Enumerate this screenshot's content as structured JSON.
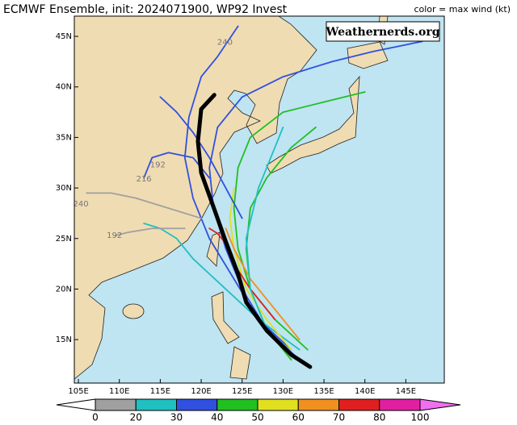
{
  "title": "ECMWF Ensemble, init: 2024071900, WP92 Invest",
  "legend_note": "color = max wind (kt)",
  "watermark": "Weathernerds.org",
  "map": {
    "lonlim": [
      104.5,
      149.7
    ],
    "latlim": [
      10.7,
      47
    ],
    "lonticks": [
      {
        "value": 105,
        "label": "105E"
      },
      {
        "value": 110,
        "label": "110E"
      },
      {
        "value": 115,
        "label": "115E"
      },
      {
        "value": 120,
        "label": "120E"
      },
      {
        "value": 125,
        "label": "125E"
      },
      {
        "value": 130,
        "label": "130E"
      },
      {
        "value": 135,
        "label": "135E"
      },
      {
        "value": 140,
        "label": "140E"
      },
      {
        "value": 145,
        "label": "145E"
      }
    ],
    "latticks": [
      {
        "value": 15,
        "label": "15N"
      },
      {
        "value": 20,
        "label": "20N"
      },
      {
        "value": 25,
        "label": "25N"
      },
      {
        "value": 30,
        "label": "30N"
      },
      {
        "value": 35,
        "label": "35N"
      },
      {
        "value": 40,
        "label": "40N"
      },
      {
        "value": 45,
        "label": "45N"
      }
    ],
    "tracks": [
      {
        "color": "#000000",
        "lon": [
          133.3,
          131,
          128,
          125.5,
          124.5,
          123,
          121.6,
          120,
          119.6,
          120,
          121.6
        ],
        "lat": [
          12.3,
          13.5,
          15.9,
          18.7,
          21.5,
          24.7,
          27.9,
          31.5,
          34.6,
          37.8,
          39.2
        ]
      },
      {
        "color": "#3050e0",
        "lon": [
          132,
          128,
          125,
          123,
          121.5,
          121,
          122,
          125,
          130,
          136,
          141,
          147
        ],
        "lat": [
          13,
          16,
          20,
          24,
          28,
          32,
          36,
          39,
          41,
          42.5,
          43.5,
          44.5
        ]
      },
      {
        "color": "#3050e0",
        "lon": [
          131,
          127,
          124,
          121,
          119,
          118,
          118.5,
          120,
          122,
          124.5
        ],
        "lat": [
          14,
          17,
          21,
          25,
          29,
          33,
          37,
          41,
          43,
          46
        ]
      },
      {
        "color": "#20c0c0",
        "lon": [
          132,
          127,
          123,
          119,
          117,
          115,
          113
        ],
        "lat": [
          14,
          17,
          20,
          23,
          25,
          26,
          26.5
        ]
      },
      {
        "color": "#20c020",
        "lon": [
          133,
          129,
          126,
          124.5,
          124,
          124.5,
          126,
          130,
          135,
          140
        ],
        "lat": [
          14,
          17,
          20,
          24,
          28,
          32,
          35,
          37.5,
          38.5,
          39.5
        ]
      },
      {
        "color": "#20c020",
        "lon": [
          131,
          128,
          126,
          125.5,
          126,
          128,
          131,
          134
        ],
        "lat": [
          13,
          16,
          20,
          24,
          28,
          31,
          34,
          36
        ]
      },
      {
        "color": "#e0e020",
        "lon": [
          131,
          128,
          125.5,
          124,
          123.5,
          124
        ],
        "lat": [
          14,
          17,
          20,
          24,
          27,
          30
        ]
      },
      {
        "color": "#f09020",
        "lon": [
          132,
          129,
          126,
          124,
          123
        ],
        "lat": [
          15,
          18,
          21,
          24,
          26
        ]
      },
      {
        "color": "#e02020",
        "lon": [
          129,
          126,
          124,
          123,
          122,
          121
        ],
        "lat": [
          17,
          20,
          22.5,
          24.5,
          25.5,
          26
        ]
      },
      {
        "color": "#a0a0a0",
        "lon": [
          120,
          116,
          112,
          109,
          106
        ],
        "lat": [
          27,
          28,
          29,
          29.5,
          29.5
        ]
      },
      {
        "color": "#a0a0a0",
        "lon": [
          118,
          114,
          111,
          109.5
        ],
        "lat": [
          26,
          26,
          25.6,
          25.3
        ]
      },
      {
        "color": "#3050e0",
        "lon": [
          125,
          123,
          121,
          119,
          117,
          115
        ],
        "lat": [
          27,
          30,
          33,
          35.5,
          37.5,
          39
        ]
      },
      {
        "color": "#20c0c0",
        "lon": [
          128,
          126,
          125.5,
          127,
          129,
          130
        ],
        "lat": [
          16,
          20,
          25,
          30,
          34,
          36
        ]
      },
      {
        "color": "#3050e0",
        "lon": [
          121,
          119,
          116,
          114,
          113
        ],
        "lat": [
          31,
          33,
          33.5,
          33,
          31
        ]
      }
    ],
    "hour_labels": [
      {
        "text": "240",
        "lon": 105.3,
        "lat": 28.4
      },
      {
        "text": "192",
        "lon": 109.4,
        "lat": 25.3
      },
      {
        "text": "216",
        "lon": 113,
        "lat": 30.9
      },
      {
        "text": "192",
        "lon": 114.7,
        "lat": 32.3
      },
      {
        "text": "240",
        "lon": 122.9,
        "lat": 44.4
      }
    ]
  },
  "colorbar": {
    "ticks": [
      0,
      20,
      30,
      40,
      50,
      60,
      70,
      80,
      100
    ],
    "colors": [
      "#a0a0a0",
      "#20c0c0",
      "#3050e0",
      "#20c020",
      "#e0e020",
      "#f09020",
      "#e02020",
      "#e020a0"
    ]
  }
}
